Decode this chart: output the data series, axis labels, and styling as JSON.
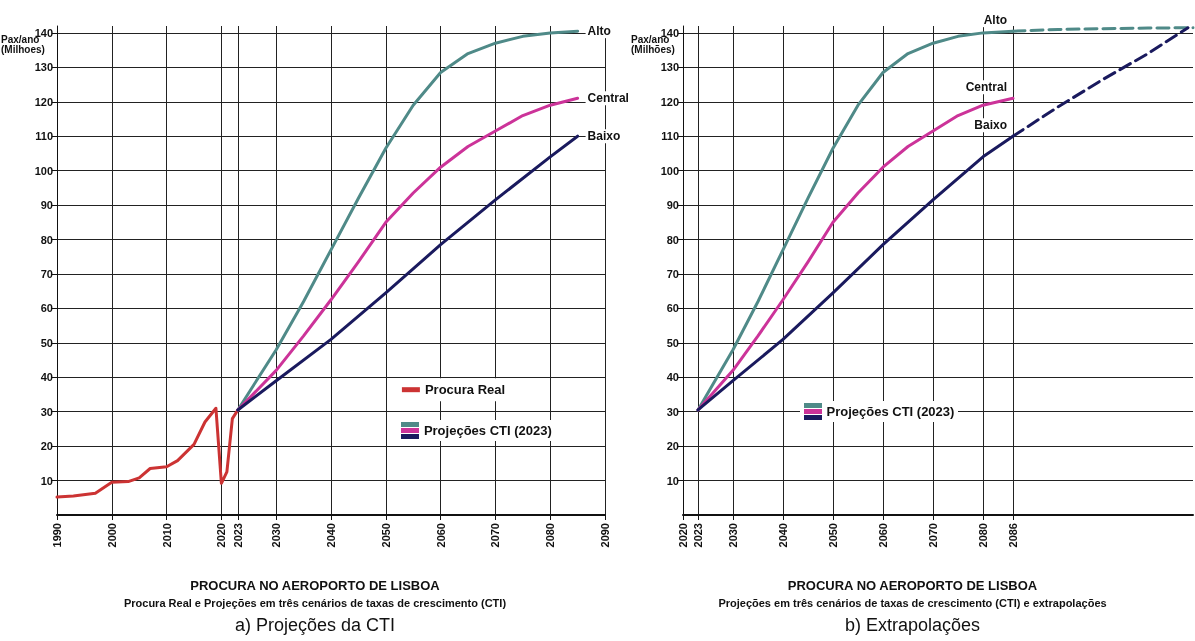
{
  "chart_data": [
    {
      "type": "line",
      "title": "a) Projeções da CTI",
      "subtitle": "Procura Real e Projeções em três cenários de taxas de crescimento (CTI)",
      "xlabel": "PROCURA NO AEROPORTO DE LISBOA",
      "ylabel": "Pax/ano\n(Milhoes)",
      "legend_title": "Projeções CTI (2023)",
      "legend": "right",
      "grid": true,
      "marker": "none",
      "xlim": [
        1990,
        2090
      ],
      "xticks": [
        1990,
        2000,
        2010,
        2020,
        2023,
        2030,
        2040,
        2050,
        2060,
        2070,
        2080,
        2090
      ],
      "ylim": [
        0,
        142
      ],
      "yticks": [
        10,
        20,
        30,
        40,
        50,
        60,
        70,
        80,
        90,
        100,
        110,
        120,
        130,
        140
      ],
      "series": [
        {
          "name": "Procura Real",
          "color": "#cc3333",
          "x": [
            1990,
            1993,
            1997,
            2000,
            2003,
            2005,
            2007,
            2010,
            2012,
            2015,
            2017,
            2019,
            2020,
            2021,
            2022,
            2023
          ],
          "values": [
            5.2,
            5.5,
            6.3,
            9.5,
            9.7,
            10.8,
            13.5,
            14,
            15.8,
            20.5,
            27,
            31,
            9.2,
            12.5,
            28,
            30.5
          ]
        },
        {
          "name": "Alto",
          "color": "#4f8a88",
          "x": [
            2023,
            2030,
            2035,
            2040,
            2045,
            2050,
            2055,
            2060,
            2065,
            2070,
            2075,
            2080,
            2085
          ],
          "values": [
            30.5,
            48,
            62,
            77,
            92,
            106.5,
            119,
            128.5,
            134,
            137,
            139,
            140,
            140.5
          ]
        },
        {
          "name": "Central",
          "color": "#cc3399",
          "x": [
            2023,
            2030,
            2035,
            2040,
            2045,
            2050,
            2055,
            2060,
            2065,
            2070,
            2075,
            2080,
            2085
          ],
          "values": [
            30.5,
            42,
            52,
            62.5,
            73.5,
            85,
            93.5,
            101,
            107,
            111.5,
            116,
            119,
            121
          ]
        },
        {
          "name": "Baixo",
          "color": "#1a1a5e",
          "x": [
            2023,
            2030,
            2040,
            2050,
            2060,
            2070,
            2080,
            2085
          ],
          "values": [
            30.5,
            39,
            51,
            64.5,
            78.5,
            91.5,
            104,
            110
          ]
        }
      ]
    },
    {
      "type": "line",
      "title": "b) Extrapolações",
      "subtitle": "Projeções em três cenários de taxas de crescimento (CTI) e extrapolações",
      "xlabel": "PROCURA NO AEROPORTO DE LISBOA",
      "ylabel": "Pax/ano\n(Milhões)",
      "legend_title": "Projeções CTI (2023)",
      "grid": true,
      "marker": "none",
      "xlim": [
        2020,
        2122
      ],
      "xticks": [
        2020,
        2023,
        2030,
        2040,
        2050,
        2060,
        2070,
        2080,
        2086
      ],
      "ylim": [
        0,
        142
      ],
      "yticks": [
        10,
        20,
        30,
        40,
        50,
        60,
        70,
        80,
        90,
        100,
        110,
        120,
        130,
        140
      ],
      "series": [
        {
          "name": "Alto",
          "color": "#4f8a88",
          "x": [
            2023,
            2030,
            2035,
            2040,
            2045,
            2050,
            2055,
            2060,
            2065,
            2070,
            2075,
            2080,
            2086
          ],
          "values": [
            30.5,
            48,
            62,
            77,
            92,
            106.5,
            119,
            128.5,
            134,
            137,
            139,
            140,
            140.5
          ]
        },
        {
          "name": "Central",
          "color": "#cc3399",
          "x": [
            2023,
            2030,
            2035,
            2040,
            2045,
            2050,
            2055,
            2060,
            2065,
            2070,
            2075,
            2080,
            2086
          ],
          "values": [
            30.5,
            42,
            52,
            62.5,
            73.5,
            85,
            93.5,
            101,
            107,
            111.5,
            116,
            119,
            121
          ]
        },
        {
          "name": "Baixo",
          "color": "#1a1a5e",
          "x": [
            2023,
            2030,
            2040,
            2050,
            2060,
            2070,
            2080,
            2086
          ],
          "values": [
            30.5,
            39,
            51,
            64.5,
            78.5,
            91.5,
            104,
            110
          ]
        },
        {
          "color": "#4f8a88",
          "line_style": "dashed",
          "x": [
            2086,
            2095,
            2104,
            2113,
            2122
          ],
          "values": [
            140.5,
            141,
            141.2,
            141.4,
            141.5
          ]
        },
        {
          "color": "#1a1a5e",
          "line_style": "dashed",
          "x": [
            2086,
            2095,
            2104,
            2113,
            2121
          ],
          "values": [
            110,
            118.5,
            126.5,
            134,
            141.5
          ]
        }
      ]
    }
  ]
}
